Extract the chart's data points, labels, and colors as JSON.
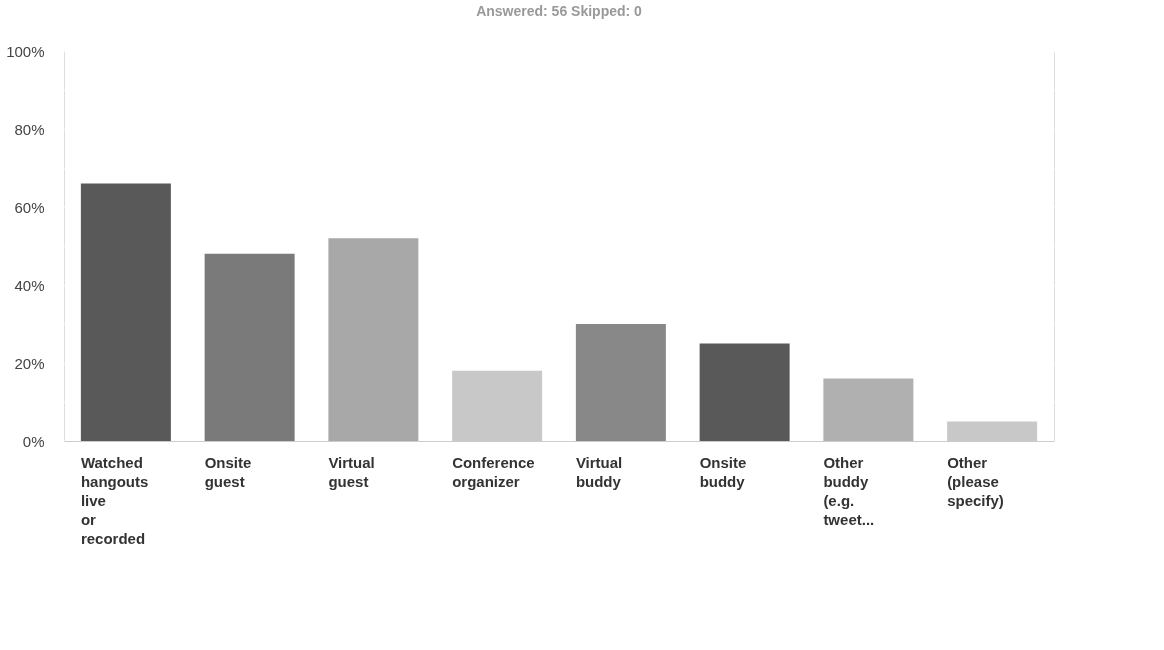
{
  "chart_data": {
    "type": "bar",
    "title": "Answered: 56    Skipped: 0",
    "categories": [
      "Watched hangouts live or recorded",
      "Onsite guest",
      "Virtual guest",
      "Conference organizer",
      "Virtual buddy",
      "Onsite buddy",
      "Other buddy (e.g. tweet...",
      "Other (please specify)"
    ],
    "values": [
      66,
      48,
      52,
      18,
      30,
      25,
      16,
      5
    ],
    "colors": [
      "#595959",
      "#7a7a7a",
      "#a8a8a8",
      "#c8c8c8",
      "#888888",
      "#595959",
      "#b0b0b0",
      "#c8c8c8"
    ],
    "ylim": [
      0,
      100
    ],
    "yticks": [
      {
        "value": 0,
        "label": "0%"
      },
      {
        "value": 10,
        "label": null
      },
      {
        "value": 20,
        "label": "20%"
      },
      {
        "value": 30,
        "label": null
      },
      {
        "value": 40,
        "label": "40%"
      },
      {
        "value": 50,
        "label": null
      },
      {
        "value": 60,
        "label": "60%"
      },
      {
        "value": 70,
        "label": null
      },
      {
        "value": 80,
        "label": "80%"
      },
      {
        "value": 90,
        "label": null
      },
      {
        "value": 100,
        "label": "100%"
      }
    ],
    "grid": "y",
    "legend": false
  }
}
